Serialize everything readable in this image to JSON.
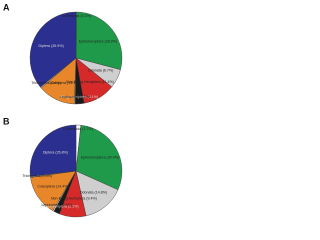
{
  "chart_data": [
    {
      "type": "pie",
      "panel": "A",
      "categories": [
        "Collembola",
        "Ephemeroptera",
        "Odonata",
        "Non-Biting Hemiptera",
        "Biting Hemiptera",
        "Lepidoptera",
        "Coleoptera",
        "Trichoptera",
        "Diptera"
      ],
      "values": [
        0.2,
        28.9,
        6.7,
        11.4,
        3.1,
        0.3,
        13.1,
        0.4,
        35.9
      ],
      "value_labels": [
        "(0.2%)",
        "(28.9%)",
        "(6.7%)",
        "(11.4%)",
        "(3.1%)",
        "(0.3%)",
        "(13.1%)",
        "(0.4%)",
        "(35.9%)"
      ],
      "colors": [
        "#ffffff",
        "#1f9a4a",
        "#cfcfcf",
        "#d62a2a",
        "#1a1a1a",
        "#eeeeee",
        "#e8862a",
        "#b8b8b8",
        "#2b2f8f"
      ]
    },
    {
      "type": "pie",
      "panel": "B",
      "categories": [
        "Collembola",
        "Ephemeroptera",
        "Odonata",
        "Non-Biting Hemiptera",
        "Biting Hemiptera",
        "Lepidoptera",
        "Coleoptera",
        "Trichoptera",
        "Diptera"
      ],
      "values": [
        1.7,
        30.0,
        14.8,
        9.4,
        2.1,
        0.4,
        14.4,
        0.4,
        26.8
      ],
      "value_labels": [
        "(1.7%)",
        "(30.0%)",
        "(14.8%)",
        "(9.4%)",
        "(2.1%)",
        "(0.4%)",
        "(14.4%)",
        "(0.4%)",
        "(26.8%)"
      ],
      "colors": [
        "#ffffff",
        "#1f9a4a",
        "#cfcfcf",
        "#d62a2a",
        "#1a1a1a",
        "#eeeeee",
        "#e8862a",
        "#b8b8b8",
        "#2b2f8f"
      ]
    }
  ]
}
